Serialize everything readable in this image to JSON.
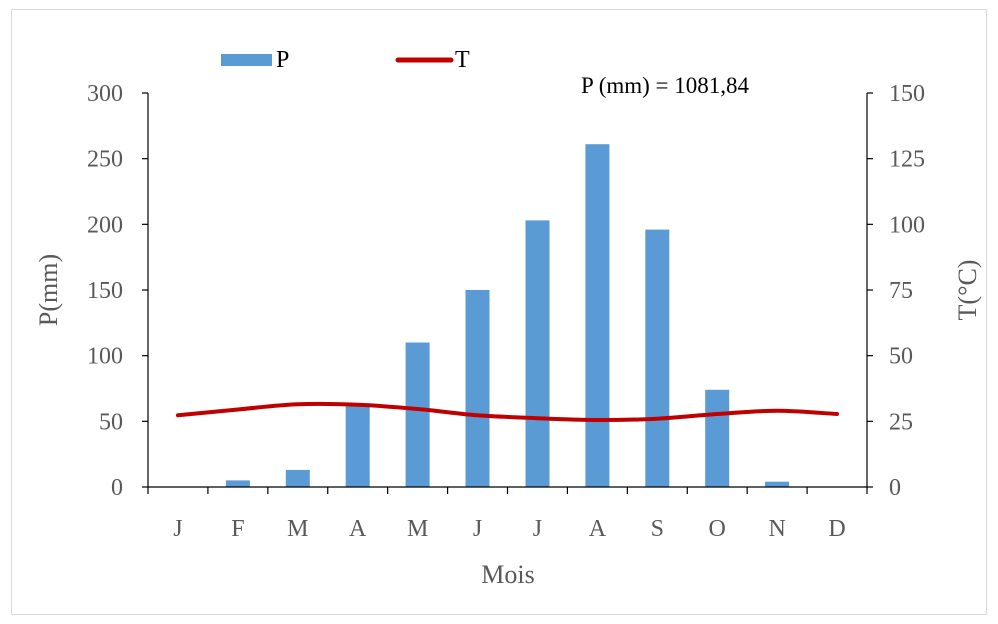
{
  "chart_data": {
    "type": "bar+line",
    "categories": [
      "J",
      "F",
      "M",
      "A",
      "M",
      "J",
      "J",
      "A",
      "S",
      "O",
      "N",
      "D"
    ],
    "series": [
      {
        "name": "P",
        "type": "bar",
        "axis": "left",
        "color": "#5b9bd5",
        "values": [
          0,
          5,
          13,
          62,
          110,
          150,
          203,
          261,
          196,
          74,
          4,
          0
        ]
      },
      {
        "name": "T",
        "type": "line",
        "axis": "right",
        "color": "#c00000",
        "values": [
          27.3,
          29.5,
          31.5,
          31.3,
          29.7,
          27.3,
          26.2,
          25.5,
          26.0,
          27.8,
          29.0,
          27.8
        ]
      }
    ],
    "annotation": "P (mm) = 1081,84",
    "xlabel": "Mois",
    "ylabel": "P(mm)",
    "y2label": "T(°C)",
    "ylim": [
      0,
      300
    ],
    "y2lim": [
      0,
      150
    ],
    "yticks": [
      "0",
      "50",
      "100",
      "150",
      "200",
      "250",
      "300"
    ],
    "y2ticks": [
      "0",
      "25",
      "50",
      "75",
      "100",
      "125",
      "150"
    ],
    "grid": false,
    "legend_position": "top"
  }
}
